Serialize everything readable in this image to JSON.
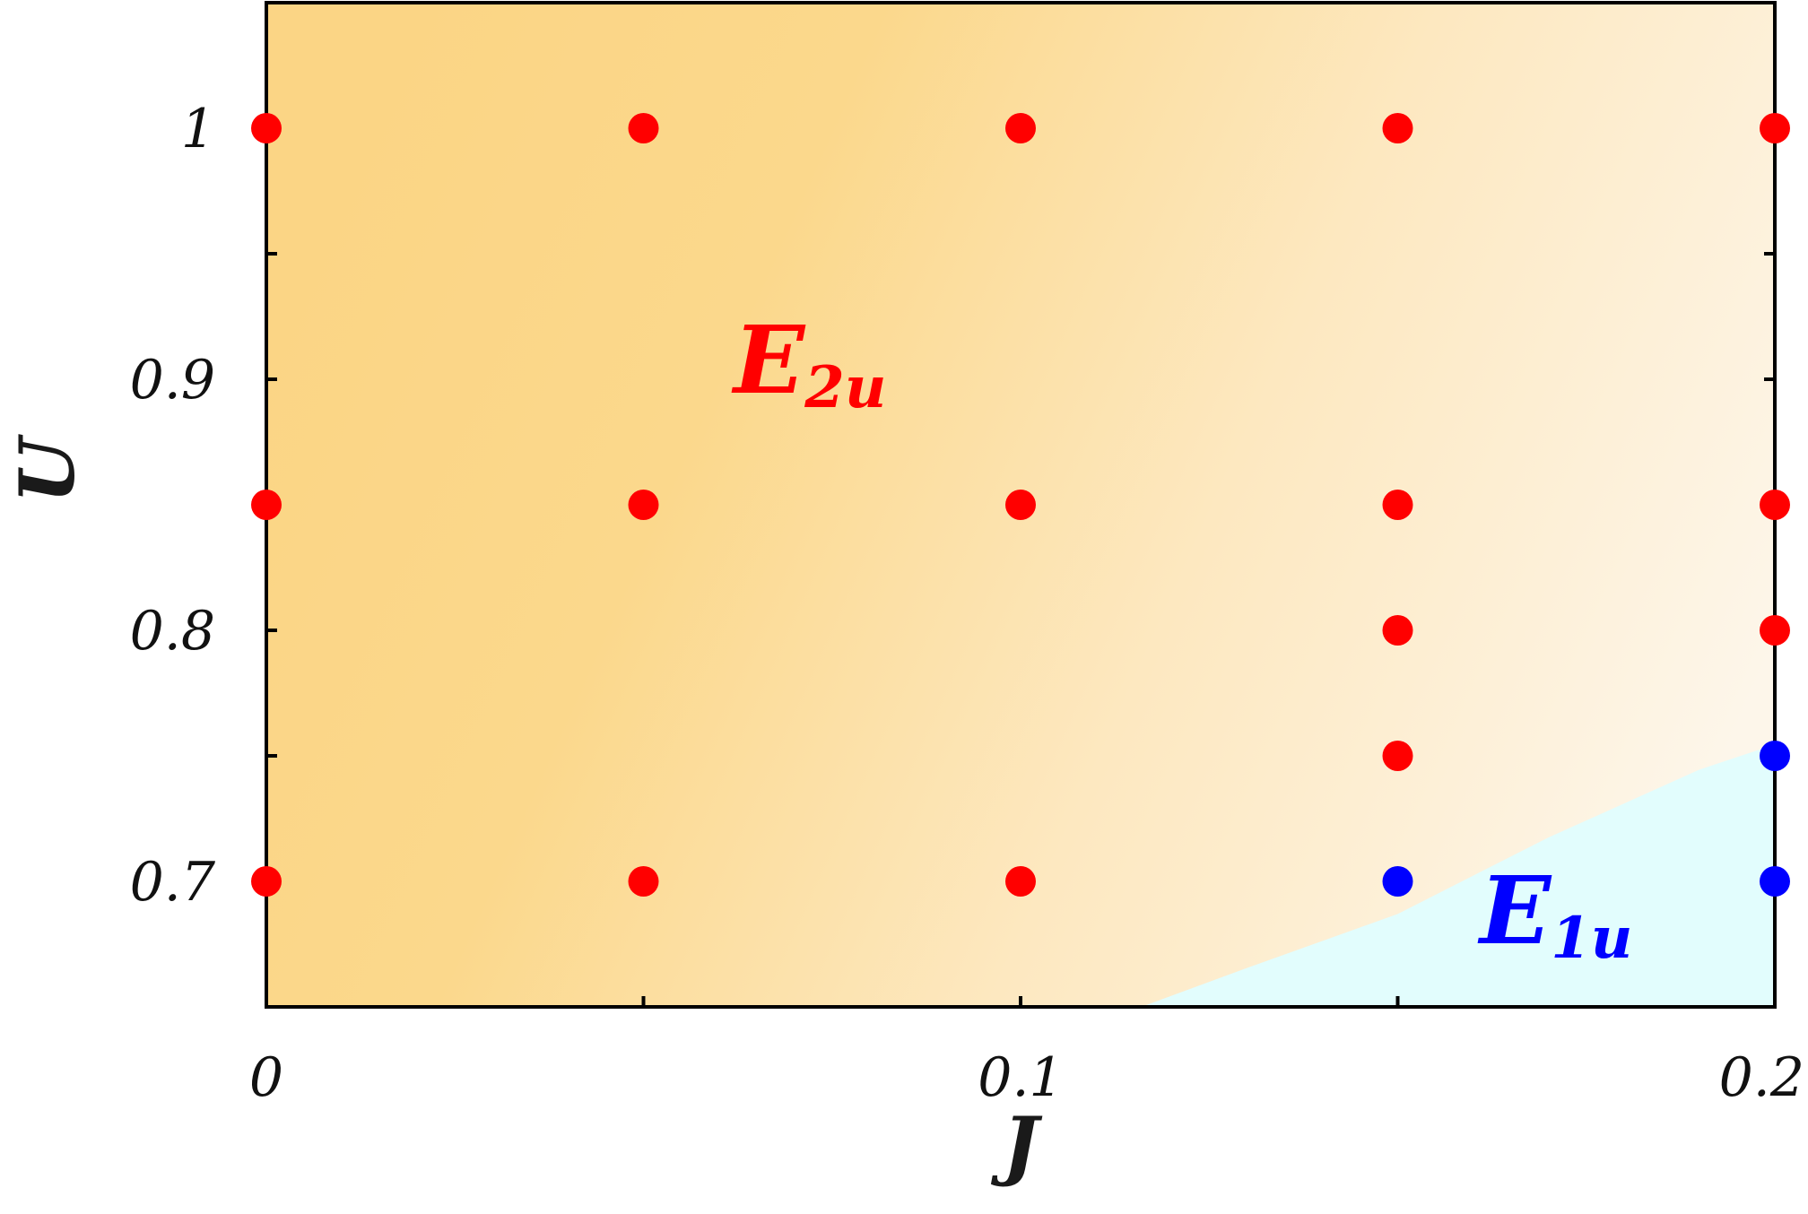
{
  "chart_data": {
    "type": "scatter",
    "title": "",
    "xlabel": "J",
    "ylabel": "U",
    "xlim": [
      0,
      0.2
    ],
    "ylim": [
      0.65,
      1.05
    ],
    "x_ticks": [
      0,
      0.05,
      0.1,
      0.15,
      0.2
    ],
    "x_tick_labels": [
      "0",
      "",
      "0.1",
      "",
      "0.2"
    ],
    "y_ticks": [
      0.7,
      0.75,
      0.8,
      0.85,
      0.9,
      0.95,
      1.0
    ],
    "y_tick_labels": [
      "0.7",
      "",
      "0.8",
      "",
      "0.9",
      "",
      "1"
    ],
    "grid": false,
    "series": [
      {
        "name": "E2u",
        "color": "#ff0000",
        "points": [
          [
            0,
            1.0
          ],
          [
            0.05,
            1.0
          ],
          [
            0.1,
            1.0
          ],
          [
            0.15,
            1.0
          ],
          [
            0.2,
            1.0
          ],
          [
            0,
            0.85
          ],
          [
            0.05,
            0.85
          ],
          [
            0.1,
            0.85
          ],
          [
            0.15,
            0.85
          ],
          [
            0.2,
            0.85
          ],
          [
            0.15,
            0.8
          ],
          [
            0.2,
            0.8
          ],
          [
            0.15,
            0.75
          ],
          [
            0,
            0.7
          ],
          [
            0.05,
            0.7
          ],
          [
            0.1,
            0.7
          ]
        ]
      },
      {
        "name": "E1u",
        "color": "#0000ff",
        "points": [
          [
            0.2,
            0.75
          ],
          [
            0.15,
            0.7
          ],
          [
            0.2,
            0.7
          ]
        ]
      }
    ],
    "regions": [
      {
        "label": "E",
        "subscript": "2u",
        "color": "#ff0000",
        "fill_colors": [
          "#fbd585",
          "#fdf6ea"
        ],
        "anchor": [
          0.062,
          0.9
        ]
      },
      {
        "label": "E",
        "subscript": "1u",
        "color": "#0000ff",
        "fill_color": "#e2fdfd",
        "anchor": [
          0.161,
          0.68
        ]
      }
    ],
    "boundary": [
      [
        0.116,
        0.65
      ],
      [
        0.13,
        0.6655
      ],
      [
        0.15,
        0.687
      ],
      [
        0.17,
        0.7175
      ],
      [
        0.19,
        0.7445
      ],
      [
        0.2,
        0.7545
      ]
    ]
  }
}
